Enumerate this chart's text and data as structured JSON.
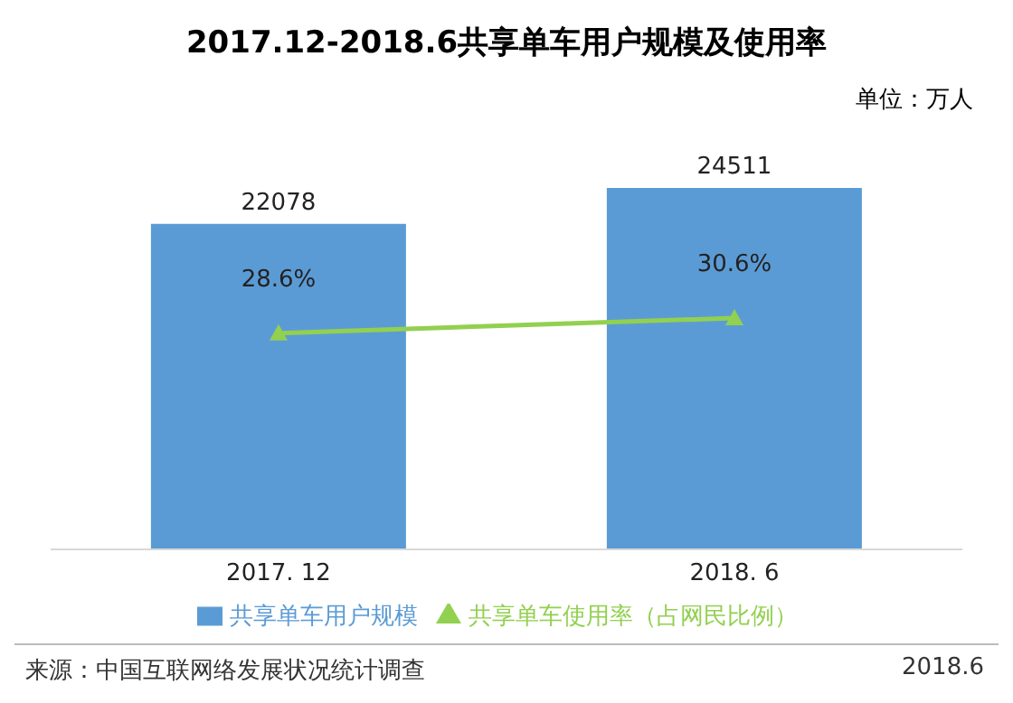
{
  "chart_data": {
    "type": "bar",
    "title": "2017.12-2018.6共享单车用户规模及使用率",
    "categories": [
      "2017. 12",
      "2018. 6"
    ],
    "series": [
      {
        "name": "共享单车用户规模",
        "color": "#5b9bd5",
        "values": [
          22078,
          24511
        ],
        "value_labels": [
          "22078",
          "24511"
        ]
      },
      {
        "name": "共享单车使用率（占网民比例）",
        "type": "line",
        "axis": "y2",
        "color": "#92d050",
        "values": [
          28.6,
          30.6
        ],
        "value_labels": [
          "28.6%",
          "30.6%"
        ]
      }
    ],
    "marker": "triangle",
    "legend": "bottom",
    "annotations": [
      "单位：万人",
      "来源：中国互联网络发展状况统计调查",
      "2018.6"
    ]
  }
}
